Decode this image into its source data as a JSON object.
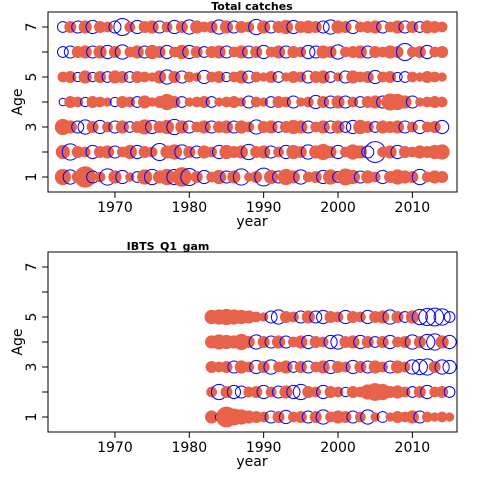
{
  "colors": {
    "positive": "#e8624a",
    "negative": "#0000ff",
    "frame": "#000000"
  },
  "chart_data": [
    {
      "type": "bubble",
      "title": "Total catches",
      "xlabel": "year",
      "ylabel": "Age",
      "xlim": [
        1961,
        2016
      ],
      "ylim": [
        0.4,
        7.6
      ],
      "x_ticks": [
        "1970",
        "1980",
        "1990",
        "2000",
        "2010"
      ],
      "y_ticks": [
        "1",
        "3",
        "5",
        "7"
      ],
      "years": [
        1963,
        2014
      ],
      "ages": [
        1,
        7
      ],
      "residuals": [
        [
          0.9,
          -0.7,
          0.5,
          1.6,
          -0.5,
          0.4,
          -0.9,
          0.6,
          -0.6,
          0.3,
          -0.4,
          0.8,
          -0.8,
          0.6,
          0.9,
          -0.8,
          1.3,
          -1.0,
          0.5,
          -0.6,
          0.4,
          0.7,
          -0.5,
          0.6,
          -0.9,
          0.3,
          0.5,
          -1.1,
          0.7,
          -0.5,
          0.9,
          0.6,
          -0.7,
          0.4,
          0.5,
          -0.6,
          0.8,
          -0.4,
          1.0,
          0.7,
          -0.5,
          0.6,
          0.4,
          -0.6,
          0.5,
          0.8,
          0.6,
          0.5,
          -0.8,
          0.4,
          0.6,
          0.5
        ],
        [
          0.7,
          -0.9,
          0.5,
          0.4,
          -0.6,
          0.5,
          0.6,
          -0.5,
          0.4,
          0.7,
          -0.6,
          0.5,
          0.4,
          -1.0,
          0.6,
          0.8,
          -0.7,
          0.5,
          -0.5,
          0.6,
          0.4,
          -0.6,
          0.7,
          0.5,
          0.6,
          -0.8,
          0.5,
          0.6,
          -0.5,
          0.4,
          -0.6,
          0.7,
          0.5,
          -0.7,
          0.6,
          0.9,
          0.5,
          -0.6,
          0.4,
          0.8,
          0.6,
          -0.5,
          -1.5,
          0.4,
          0.6,
          -0.6,
          0.5,
          0.4,
          0.6,
          0.5,
          0.7,
          0.8
        ],
        [
          0.9,
          0.6,
          -0.5,
          -0.7,
          0.5,
          -0.6,
          0.4,
          -0.5,
          0.6,
          -0.4,
          0.5,
          0.8,
          -0.6,
          0.5,
          0.7,
          -0.8,
          0.6,
          -0.5,
          0.4,
          0.6,
          -0.5,
          0.5,
          0.6,
          -0.5,
          0.6,
          0.4,
          -0.7,
          0.5,
          0.6,
          -0.4,
          0.5,
          0.7,
          0.6,
          -0.5,
          0.4,
          0.6,
          -0.5,
          0.6,
          -0.4,
          -0.6,
          0.7,
          0.5,
          -0.4,
          0.6,
          0.5,
          0.6,
          -0.5,
          0.4,
          -0.6,
          0.4,
          0.5,
          -0.6
        ],
        [
          -0.2,
          0.5,
          0.4,
          -0.3,
          0.5,
          0.4,
          0.3,
          -0.3,
          0.5,
          0.4,
          -0.4,
          0.6,
          0.3,
          0.5,
          0.9,
          0.5,
          -0.4,
          0.3,
          0.4,
          0.5,
          -0.4,
          0.3,
          0.4,
          0.5,
          0.3,
          -0.5,
          0.4,
          0.3,
          -0.4,
          0.5,
          0.4,
          -0.5,
          0.3,
          0.4,
          -0.6,
          0.5,
          -0.5,
          0.6,
          -0.5,
          0.4,
          -0.4,
          0.5,
          0.6,
          -0.5,
          1.0,
          0.9,
          0.6,
          -0.5,
          0.3,
          0.4,
          0.5,
          0.4
        ],
        [
          0.4,
          0.5,
          -0.3,
          0.6,
          -0.3,
          0.5,
          -0.4,
          0.6,
          0.5,
          -0.4,
          0.5,
          0.4,
          0.3,
          0.6,
          -0.7,
          0.5,
          -0.5,
          0.4,
          0.3,
          -0.6,
          0.4,
          0.5,
          -0.3,
          0.4,
          0.6,
          -0.5,
          0.4,
          0.3,
          0.5,
          -0.4,
          0.3,
          0.5,
          0.4,
          -0.5,
          0.5,
          0.6,
          -0.4,
          0.3,
          -0.5,
          0.6,
          0.4,
          0.5,
          -0.6,
          0.4,
          0.5,
          -0.3,
          -0.4,
          0.4,
          0.3,
          0.5,
          0.4,
          0.3
        ],
        [
          -0.4,
          -0.5,
          0.5,
          0.6,
          -0.5,
          0.6,
          -0.6,
          0.5,
          -0.7,
          0.4,
          0.6,
          -0.5,
          0.7,
          0.5,
          -0.6,
          0.4,
          0.7,
          -0.6,
          0.5,
          -0.4,
          0.5,
          0.6,
          -0.5,
          0.4,
          0.6,
          -0.5,
          0.5,
          -0.6,
          0.4,
          0.6,
          -0.5,
          0.5,
          0.4,
          -0.6,
          -0.5,
          0.6,
          0.5,
          -0.7,
          0.4,
          0.5,
          0.6,
          -0.5,
          0.5,
          0.4,
          0.6,
          0.5,
          -1.0,
          0.4,
          0.5,
          -0.6,
          0.4,
          0.5
        ],
        [
          -0.4,
          0.5,
          -0.5,
          0.6,
          -0.6,
          0.5,
          0.4,
          -0.5,
          -1.0,
          0.4,
          -0.6,
          0.5,
          0.6,
          -0.5,
          0.4,
          -0.6,
          0.5,
          -0.7,
          0.6,
          0.4,
          0.5,
          -0.7,
          0.6,
          -0.5,
          0.5,
          0.4,
          -0.8,
          0.6,
          -0.5,
          0.5,
          0.7,
          -0.6,
          0.5,
          0.6,
          0.5,
          -0.5,
          -0.7,
          0.6,
          0.5,
          -0.6,
          0.4,
          0.5,
          0.6,
          -0.5,
          0.4,
          0.6,
          -0.5,
          0.5,
          -0.4,
          0.6,
          0.5,
          0.4
        ]
      ]
    },
    {
      "type": "bubble",
      "title": "IBTS_Q1_gam",
      "xlabel": "year",
      "ylabel": "Age",
      "xlim": [
        1961,
        2016
      ],
      "ylim": [
        0.4,
        7.6
      ],
      "x_ticks": [
        "1970",
        "1980",
        "1990",
        "2000",
        "2010"
      ],
      "y_ticks": [
        "1",
        "3",
        "5",
        "7"
      ],
      "years": [
        1983,
        2015
      ],
      "ages": [
        1,
        5
      ],
      "residuals": [
        [
          0.6,
          -0.2,
          1.5,
          1.0,
          0.8,
          0.6,
          0.5,
          0.4,
          -0.5,
          0.5,
          -0.6,
          0.4,
          0.5,
          -0.5,
          0.5,
          -0.7,
          0.4,
          0.6,
          0.5,
          -0.5,
          0.4,
          -0.7,
          0.3,
          -0.4,
          0.3,
          0.5,
          0.4,
          0.6,
          -0.5,
          0.4,
          0.3,
          0.4,
          0.3
        ],
        [
          0.4,
          -0.8,
          0.5,
          -0.6,
          -0.5,
          0.4,
          0.5,
          -0.6,
          0.4,
          -0.5,
          0.6,
          -0.6,
          -0.8,
          0.5,
          0.4,
          -0.6,
          0.5,
          0.4,
          -0.3,
          0.5,
          0.4,
          0.8,
          1.1,
          0.9,
          0.5,
          0.6,
          0.4,
          -0.4,
          0.5,
          -0.6,
          0.4,
          0.5,
          -0.4
        ],
        [
          0.5,
          0.4,
          0.5,
          -0.5,
          0.6,
          0.4,
          -0.6,
          0.5,
          -0.7,
          0.4,
          0.6,
          -0.4,
          0.5,
          -0.5,
          0.4,
          0.6,
          -0.6,
          0.5,
          0.4,
          -0.6,
          0.5,
          -0.5,
          0.6,
          0.4,
          -0.5,
          0.6,
          0.4,
          -0.7,
          -0.8,
          -0.9,
          0.5,
          -0.7,
          -0.6
        ],
        [
          0.6,
          0.8,
          0.7,
          0.6,
          0.9,
          0.5,
          -0.7,
          0.5,
          -0.5,
          0.6,
          -0.5,
          0.4,
          0.6,
          -0.6,
          0.5,
          0.4,
          -0.6,
          -0.7,
          0.5,
          0.6,
          -0.6,
          0.5,
          -0.4,
          0.5,
          -0.6,
          0.4,
          0.5,
          -0.7,
          0.5,
          -0.8,
          -0.9,
          0.6,
          -0.6
        ],
        [
          0.7,
          0.8,
          0.9,
          0.8,
          0.7,
          0.6,
          0.4,
          0.3,
          -0.5,
          -0.7,
          0.5,
          0.4,
          -0.5,
          0.6,
          -0.5,
          -0.6,
          0.5,
          0.4,
          -0.6,
          0.5,
          0.4,
          -0.6,
          0.5,
          0.6,
          -0.7,
          0.5,
          -0.4,
          0.6,
          -0.8,
          -1.0,
          -1.1,
          -0.9,
          -0.4
        ]
      ]
    }
  ]
}
